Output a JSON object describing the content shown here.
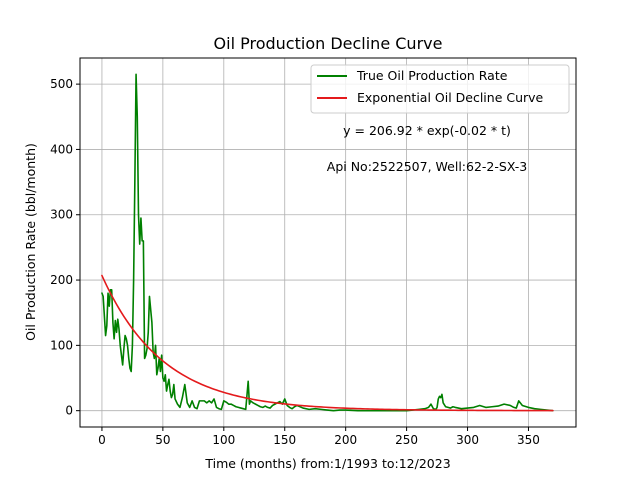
{
  "chart_data": {
    "type": "line",
    "title": "Oil Production Decline Curve",
    "xlabel": "Time (months) from:1/1993 to:12/2023",
    "ylabel": "Oil Production Rate (bbl/month)",
    "xlim": [
      -18,
      389
    ],
    "ylim": [
      -25,
      540
    ],
    "xticks": [
      0,
      50,
      100,
      150,
      200,
      250,
      300,
      350
    ],
    "yticks": [
      0,
      100,
      200,
      300,
      400,
      500
    ],
    "grid": true,
    "legend_position": "top-right",
    "annotations": [
      {
        "text": "y = 206.92 * exp(-0.02 * t)",
        "x": 265,
        "y": 420
      },
      {
        "text": "Api No:2522507, Well:62-2-SX-3",
        "x": 265,
        "y": 365
      }
    ],
    "series": [
      {
        "name": "True Oil Production Rate",
        "color": "#008000",
        "kind": "observed",
        "x": [
          0,
          1,
          2,
          3,
          4,
          5,
          6,
          7,
          8,
          9,
          10,
          11,
          12,
          13,
          14,
          15,
          16,
          17,
          18,
          19,
          20,
          21,
          22,
          23,
          24,
          25,
          26,
          27,
          28,
          29,
          30,
          31,
          32,
          33,
          34,
          35,
          36,
          37,
          38,
          39,
          40,
          41,
          42,
          43,
          44,
          45,
          46,
          47,
          48,
          49,
          50,
          51,
          52,
          53,
          54,
          55,
          56,
          57,
          58,
          59,
          60,
          62,
          64,
          66,
          68,
          70,
          72,
          74,
          76,
          78,
          80,
          82,
          84,
          86,
          88,
          90,
          92,
          94,
          96,
          98,
          100,
          102,
          104,
          106,
          108,
          110,
          112,
          114,
          116,
          118,
          120,
          121,
          122,
          124,
          126,
          128,
          130,
          132,
          134,
          136,
          138,
          140,
          142,
          144,
          146,
          148,
          150,
          152,
          154,
          156,
          158,
          160,
          165,
          170,
          175,
          180,
          185,
          190,
          195,
          200,
          210,
          220,
          230,
          240,
          250,
          255,
          260,
          265,
          268,
          270,
          272,
          274,
          275,
          276,
          277,
          278,
          279,
          280,
          282,
          284,
          286,
          288,
          290,
          295,
          300,
          305,
          310,
          315,
          320,
          325,
          330,
          335,
          338,
          340,
          342,
          345,
          350,
          355,
          360,
          365,
          370
        ],
        "y": [
          180,
          175,
          145,
          115,
          130,
          180,
          160,
          185,
          185,
          135,
          110,
          138,
          120,
          140,
          125,
          100,
          85,
          70,
          95,
          115,
          110,
          100,
          80,
          65,
          60,
          100,
          200,
          350,
          515,
          450,
          300,
          255,
          295,
          260,
          260,
          80,
          85,
          95,
          120,
          175,
          155,
          135,
          90,
          80,
          100,
          55,
          65,
          80,
          60,
          85,
          50,
          45,
          55,
          30,
          40,
          48,
          30,
          20,
          25,
          40,
          18,
          10,
          5,
          20,
          40,
          12,
          5,
          15,
          5,
          3,
          15,
          15,
          15,
          12,
          15,
          12,
          18,
          5,
          3,
          2,
          15,
          13,
          10,
          10,
          8,
          6,
          5,
          4,
          3,
          2,
          45,
          10,
          15,
          12,
          10,
          8,
          6,
          5,
          7,
          5,
          4,
          8,
          10,
          12,
          14,
          10,
          18,
          8,
          5,
          3,
          6,
          8,
          4,
          2,
          3,
          2,
          1,
          0,
          1,
          1,
          0,
          0,
          0,
          0,
          0,
          1,
          2,
          3,
          5,
          10,
          3,
          2,
          5,
          18,
          22,
          20,
          25,
          12,
          6,
          5,
          4,
          6,
          5,
          3,
          4,
          5,
          8,
          5,
          6,
          7,
          10,
          8,
          5,
          4,
          15,
          8,
          5,
          3,
          2,
          1,
          0
        ]
      },
      {
        "name": "Exponential Oil Decline Curve",
        "color": "#e41a1c",
        "kind": "model",
        "model": {
          "a": 206.92,
          "b": 0.02,
          "x_start": 0,
          "x_end": 370
        }
      }
    ]
  }
}
